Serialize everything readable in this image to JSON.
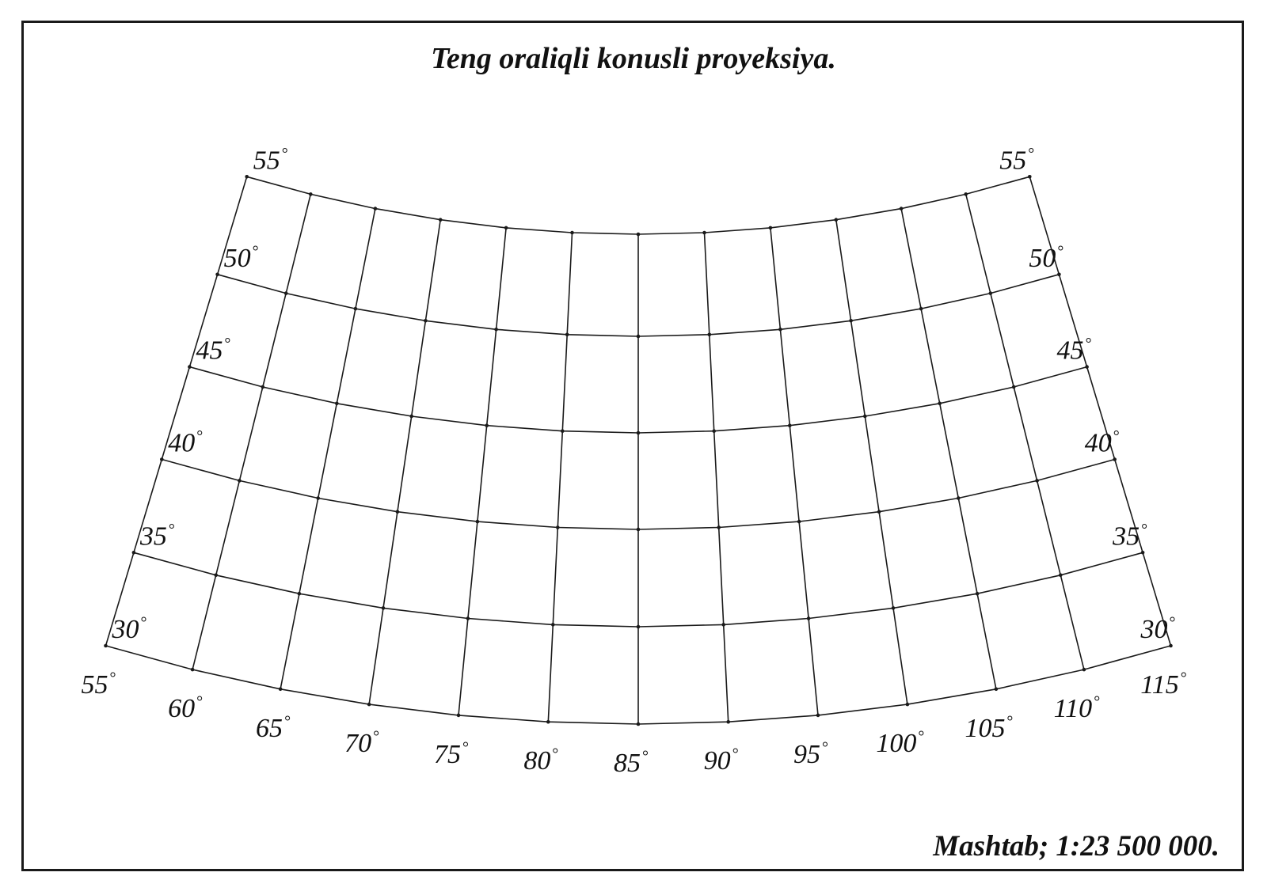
{
  "title": "Teng oraliqli konusli proyeksiya.",
  "scale_text": "Mashtab; 1:23 500 000.",
  "degree_symbol": "°",
  "graticule": {
    "projection": "equidistant conic",
    "latitudes": [
      30,
      35,
      40,
      45,
      50,
      55
    ],
    "longitudes": [
      115,
      110,
      105,
      100,
      95,
      90,
      85,
      80,
      75,
      70,
      65,
      60,
      55
    ],
    "latitude_labels_left": [
      "30",
      "35",
      "40",
      "45",
      "50",
      "55"
    ],
    "latitude_labels_right": [
      "30",
      "35",
      "40",
      "45",
      "50",
      "55"
    ],
    "longitude_labels": [
      "115",
      "110",
      "105",
      "100",
      "95",
      "90",
      "85",
      "80",
      "75",
      "70",
      "65",
      "60",
      "55"
    ],
    "line_color": "#1a1a1a"
  }
}
